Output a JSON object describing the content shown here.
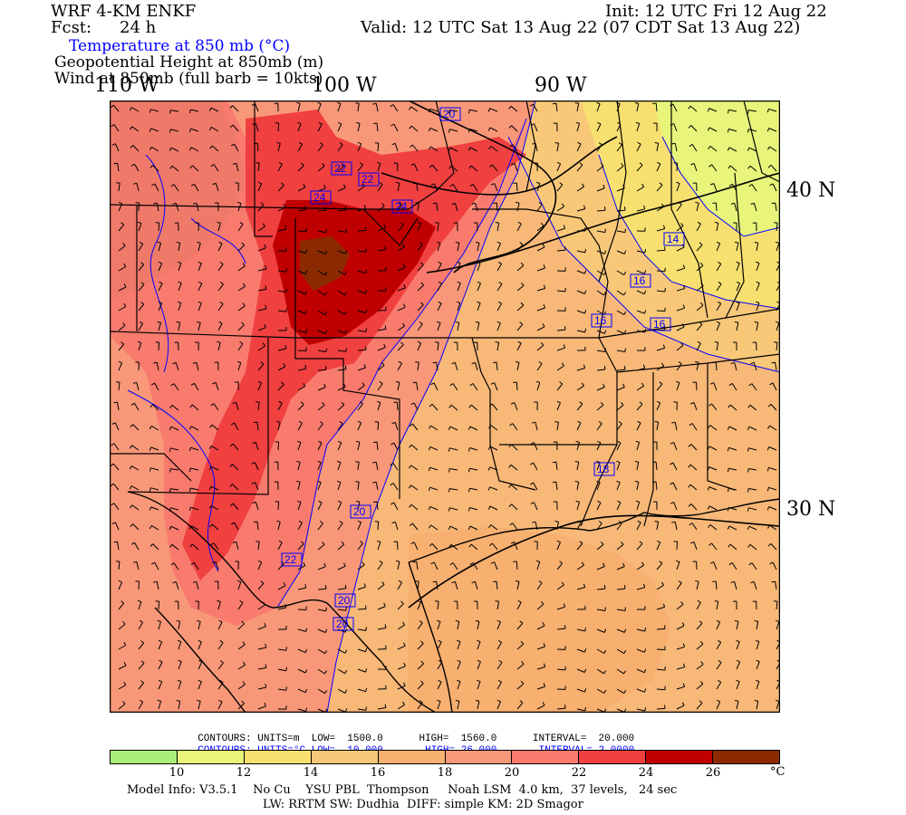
{
  "header": {
    "model": "WRF 4-KM ENKF",
    "fcst_label": "Fcst:",
    "fcst_value": "24 h",
    "init": "Init: 12 UTC Fri 12 Aug 22",
    "valid": "Valid: 12 UTC Sat 13 Aug 22 (07 CDT Sat 13 Aug 22)",
    "field1": "Temperature at 850 mb (°C)",
    "field2": "Geopotential Height at 850mb (m)",
    "field3": "Wind at 850mb (full barb = 10kts)"
  },
  "axes": {
    "lon_labels": [
      "110 W",
      "100 W",
      "90 W"
    ],
    "lat_labels": [
      "40 N",
      "30 N"
    ]
  },
  "contour_labels": {
    "temperature": [
      "20",
      "22",
      "22",
      "24",
      "24",
      "14",
      "16",
      "16",
      "18",
      "16",
      "20",
      "22",
      "20",
      "20"
    ]
  },
  "contour_info": {
    "height": {
      "label": "CONTOURS:",
      "units": "UNITS=m",
      "low_label": "LOW=",
      "low": "1500.0",
      "high_label": "HIGH=",
      "high": "1560.0",
      "interval_label": "INTERVAL=",
      "interval": "20.000"
    },
    "temp": {
      "label": "CONTOURS:",
      "units": "UNITS=°C",
      "low_label": "LOW=",
      "low": "10.000",
      "high_label": "HIGH=",
      "high": "26.000",
      "interval_label": "INTERVAL=",
      "interval": "2.0000"
    }
  },
  "colorbar": {
    "colors": [
      "#a8f07a",
      "#e8f57a",
      "#f8e070",
      "#f8c878",
      "#f8b070",
      "#f89878",
      "#f87b6e",
      "#f04040",
      "#c00000",
      "#8b2a00"
    ],
    "ticks": [
      "10",
      "12",
      "14",
      "16",
      "18",
      "20",
      "22",
      "24",
      "26"
    ],
    "unit": "°C"
  },
  "footer": {
    "line1": "Model Info: V3.5.1    No Cu    YSU PBL  Thompson     Noah LSM  4.0 km,  37 levels,   24 sec",
    "line2": "LW: RRTM SW: Dudhia  DIFF: simple KM: 2D Smagor"
  }
}
